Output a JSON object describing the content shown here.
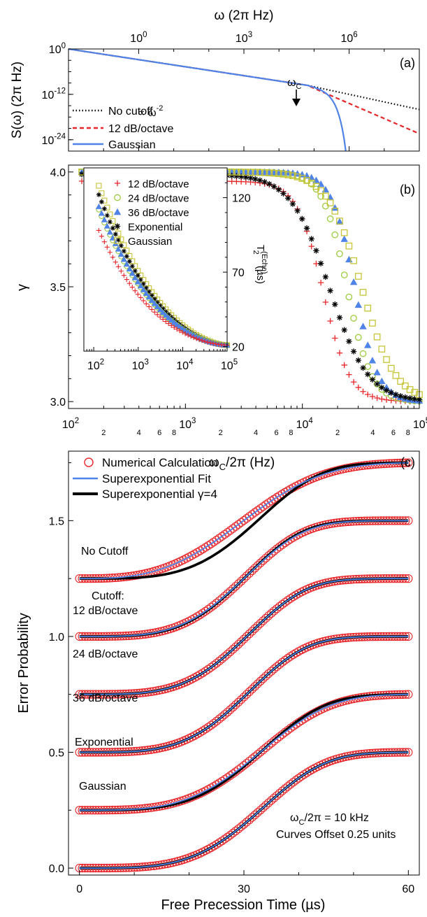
{
  "colors": {
    "red": "#e8262a",
    "blue": "#4f83e8",
    "green": "#9ccc3c",
    "yellow": "#c7c437",
    "black": "#000000"
  },
  "chart_data": [
    {
      "panel": "(a)",
      "type": "line",
      "top_xlabel": "ω (2π Hz)",
      "ylabel": "S(ω) (2π Hz)",
      "xscale": "log",
      "yscale": "log",
      "xlim": [
        0.01,
        100000000
      ],
      "ylim": [
        1e-27,
        1
      ],
      "xticks": [
        "10^0",
        "10^3",
        "10^6"
      ],
      "yticks": [
        "10^0",
        "10^-12",
        "10^-24"
      ],
      "annotations": {
        "slope": "∝ ω^-2",
        "cutoff": "ω_C",
        "cutoff_x": 62832
      },
      "legend_position": "left",
      "series": [
        {
          "name": "No cutoff",
          "style": "dotted",
          "color": "black",
          "x": [
            0.01,
            62832,
            100000000
          ],
          "y": [
            1,
            2.5e-10,
            1e-16
          ]
        },
        {
          "name": "12 dB/octave",
          "style": "dashed",
          "color": "red",
          "x": [
            0.01,
            62832,
            100000000
          ],
          "y": [
            1,
            2.5e-10,
            4e-23
          ]
        },
        {
          "name": "Gaussian",
          "style": "solid",
          "color": "blue",
          "x": [
            0.01,
            62832,
            300000,
            800000
          ],
          "y": [
            1,
            2.5e-10,
            5e-14,
            1e-27
          ]
        }
      ]
    },
    {
      "panel": "(b)",
      "type": "scatter",
      "xlabel": "ω_C/2π (Hz)",
      "ylabel": "γ",
      "xscale": "log",
      "xlim": [
        100,
        100000
      ],
      "ylim": [
        2.97,
        4.03
      ],
      "yticks": [
        3.0,
        3.5,
        4.0
      ],
      "series": [
        {
          "name": "12 dB/octave",
          "marker": "plus",
          "color": "red",
          "fn": {
            "a": 3.96,
            "b": 3.0,
            "x0": 15000,
            "w": 0.26
          }
        },
        {
          "name": "24 dB/octave",
          "marker": "circle",
          "color": "green",
          "fn": {
            "a": 4.0,
            "b": 3.0,
            "x0": 24000,
            "w": 0.24
          }
        },
        {
          "name": "36 dB/octave",
          "marker": "triangle",
          "color": "blue",
          "fn": {
            "a": 4.0,
            "b": 3.0,
            "x0": 28000,
            "w": 0.23
          }
        },
        {
          "name": "Exponential",
          "marker": "asterisk",
          "color": "black",
          "fn": {
            "a": 3.99,
            "b": 3.0,
            "x0": 17000,
            "w": 0.38
          }
        },
        {
          "name": "Gaussian",
          "marker": "square",
          "color": "yellow",
          "fn": {
            "a": 4.0,
            "b": 3.0,
            "x0": 32000,
            "w": 0.33
          }
        }
      ],
      "inset": {
        "ylabel": "T_2^(Echo) (µs)",
        "xscale": "log",
        "xlim": [
          60,
          100000
        ],
        "ylim": [
          17,
          140
        ],
        "yticks": [
          20,
          70,
          120
        ],
        "xticks": [
          "10^2",
          "10^3",
          "10^4",
          "10^5"
        ],
        "series": [
          {
            "name": "12 dB/octave",
            "fn": {
              "ymax": 98,
              "k": 0.76
            }
          },
          {
            "name": "24 dB/octave",
            "fn": {
              "ymax": 112,
              "k": 0.68
            }
          },
          {
            "name": "36 dB/octave",
            "fn": {
              "ymax": 114,
              "k": 0.67
            }
          },
          {
            "name": "Exponential",
            "fn": {
              "ymax": 122,
              "k": 0.62
            }
          },
          {
            "name": "Gaussian",
            "fn": {
              "ymax": 128,
              "k": 0.6
            }
          }
        ]
      }
    },
    {
      "panel": "(c)",
      "type": "line",
      "xlabel": "Free Precession Time (µs)",
      "ylabel": "Error Probability",
      "xlim": [
        -2,
        62
      ],
      "ylim": [
        -0.03,
        1.8
      ],
      "xticks": [
        0,
        30,
        60
      ],
      "yticks": [
        0.0,
        0.5,
        1.0,
        1.5
      ],
      "legend": [
        "Numerical Calculation",
        "Superexponential Fit",
        "Superexponential γ=4"
      ],
      "curve_labels": [
        "No Cutoff",
        "Cutoff:",
        "12 dB/octave",
        "24 dB/octave",
        "36 dB/octave",
        "Exponential",
        "Gaussian"
      ],
      "annotation_lines": [
        "ω_C/2π = 10 kHz",
        "Curves Offset 0.25 units"
      ],
      "series": [
        {
          "name": "No Cutoff",
          "offset": 1.25,
          "t_half": 30.0,
          "g_fit": 3.0
        },
        {
          "name": "12 dB/octave",
          "offset": 1.0,
          "t_half": 30.0,
          "g_fit": 3.9
        },
        {
          "name": "24 dB/octave",
          "offset": 0.75,
          "t_half": 30.5,
          "g_fit": 4.0
        },
        {
          "name": "36 dB/octave",
          "offset": 0.5,
          "t_half": 30.5,
          "g_fit": 4.0
        },
        {
          "name": "Exponential",
          "offset": 0.25,
          "t_half": 33.0,
          "g_fit": 3.7
        },
        {
          "name": "Gaussian",
          "offset": 0.0,
          "t_half": 33.0,
          "g_fit": 4.0
        }
      ]
    }
  ]
}
